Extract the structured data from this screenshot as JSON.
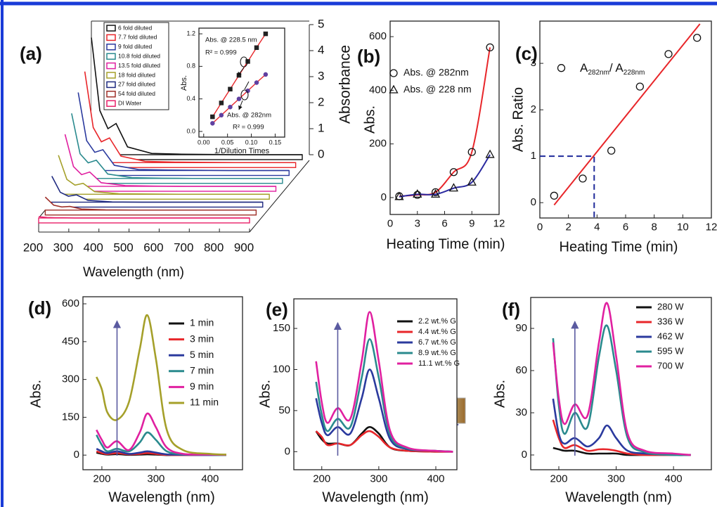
{
  "chart_data": [
    {
      "type": "waterfall",
      "panel_label": "(a)",
      "xlabel": "Wavelength (nm)",
      "ylabel": "Absorbance",
      "x": [
        200,
        228,
        255,
        282,
        320,
        400,
        500,
        600,
        700,
        800,
        900
      ],
      "xlim": [
        200,
        900
      ],
      "xticks": [
        200,
        300,
        400,
        500,
        600,
        700,
        800,
        900
      ],
      "ylim": [
        0,
        5
      ],
      "yticks": [
        0,
        1,
        2,
        3,
        4,
        5
      ],
      "series": [
        {
          "name": "6 fold diluted",
          "color": "#111111",
          "values": [
            4.5,
            1.7,
            1.0,
            1.2,
            0.3,
            0.05,
            0.02,
            0.01,
            0,
            0,
            0
          ]
        },
        {
          "name": "7.7 fold diluted",
          "color": "#e8262a",
          "values": [
            3.5,
            1.35,
            0.8,
            0.95,
            0.25,
            0.05,
            0.02,
            0.01,
            0,
            0,
            0
          ]
        },
        {
          "name": "9 fold diluted",
          "color": "#2b3a9e",
          "values": [
            3.0,
            1.15,
            0.7,
            0.8,
            0.2,
            0.04,
            0.02,
            0.01,
            0,
            0,
            0
          ]
        },
        {
          "name": "10.8 fold diluted",
          "color": "#2a8a8e",
          "values": [
            2.5,
            0.95,
            0.6,
            0.7,
            0.17,
            0.03,
            0.01,
            0,
            0,
            0,
            0
          ]
        },
        {
          "name": "13.5 fold diluted",
          "color": "#e020a0",
          "values": [
            2.0,
            0.76,
            0.45,
            0.55,
            0.14,
            0.03,
            0.01,
            0,
            0,
            0,
            0
          ]
        },
        {
          "name": "18 fold diluted",
          "color": "#a5a02a",
          "values": [
            1.5,
            0.57,
            0.35,
            0.42,
            0.1,
            0.02,
            0.01,
            0,
            0,
            0,
            0
          ]
        },
        {
          "name": "27 fold diluted",
          "color": "#1f2a80",
          "values": [
            1.0,
            0.38,
            0.23,
            0.28,
            0.07,
            0.01,
            0,
            0,
            0,
            0,
            0
          ]
        },
        {
          "name": "54 fold diluted",
          "color": "#a0302a",
          "values": [
            0.5,
            0.19,
            0.12,
            0.14,
            0.04,
            0.01,
            0,
            0,
            0,
            0,
            0
          ]
        },
        {
          "name": "DI Water",
          "color": "#e8206a",
          "values": [
            0.05,
            0.02,
            0.01,
            0.01,
            0,
            0,
            0,
            0,
            0,
            0,
            0
          ]
        }
      ]
    },
    {
      "type": "scatter",
      "xlabel": "1/Dilution Times",
      "ylabel": "Abs.",
      "xlim": [
        -0.01,
        0.17
      ],
      "xticks": [
        {
          "value": 0,
          "label": "0.00"
        },
        0.05,
        {
          "value": 0.1,
          "label": "0.10"
        },
        0.15
      ],
      "ylim": [
        -0.07,
        1.27
      ],
      "yticks": [
        {
          "value": 0,
          "label": "0.0"
        },
        0.4,
        0.8,
        1.2
      ],
      "annotations": [
        "Abs. @ 228.5 nm",
        "R² = 0.999",
        "Abs. @ 282nm",
        "R² = 0.999"
      ],
      "series": [
        {
          "marker": "square",
          "marker_filled": true,
          "marker_color": "#222222",
          "color": "#e8262a",
          "x": [
            0.0185,
            0.037,
            0.0556,
            0.074,
            0.0926,
            0.111,
            0.13
          ],
          "values": [
            0.18,
            0.35,
            0.52,
            0.69,
            0.86,
            1.03,
            1.2
          ]
        },
        {
          "marker": "circle",
          "marker_filled": true,
          "marker_color": "#6040a0",
          "color": "#e8262a",
          "x": [
            0.0185,
            0.037,
            0.0556,
            0.074,
            0.0926,
            0.111,
            0.13
          ],
          "values": [
            0.1,
            0.2,
            0.3,
            0.4,
            0.5,
            0.6,
            0.7
          ]
        }
      ]
    },
    {
      "type": "scatter",
      "panel_label": "(b)",
      "xlabel": "Heating Time (min)",
      "ylabel": "Abs.",
      "xlim": [
        0,
        12
      ],
      "xticks": [
        0,
        3,
        6,
        9,
        12
      ],
      "ylim": [
        -63,
        658
      ],
      "yticks": [
        0,
        200,
        400,
        600
      ],
      "series": [
        {
          "name": "Abs. @ 282nm",
          "marker": "circle",
          "marker_color": "#111111",
          "color": "#e8262a",
          "x": [
            1,
            3,
            5,
            7,
            9,
            11
          ],
          "values": [
            5,
            10,
            20,
            95,
            170,
            560
          ]
        },
        {
          "name": "Abs. @ 228 nm",
          "marker": "triangle",
          "marker_color": "#111111",
          "color": "#2b2aa0",
          "x": [
            1,
            3,
            5,
            7,
            9,
            11
          ],
          "values": [
            3,
            12,
            12,
            35,
            57,
            160
          ]
        }
      ]
    },
    {
      "type": "scatter",
      "panel_label": "(c)",
      "xlabel": "Heating Time (min)",
      "ylabel": "Abs. Ratio",
      "annotation": [
        "A",
        "282nm",
        "/ A",
        "228nm"
      ],
      "xlim": [
        0,
        12
      ],
      "xticks": [
        0,
        2,
        4,
        6,
        8,
        10,
        12
      ],
      "ylim": [
        -0.33,
        3.91
      ],
      "yticks": [
        0,
        1,
        2,
        3
      ],
      "series": [
        {
          "marker": "circle",
          "marker_color": "#111111",
          "x": [
            1,
            1.5,
            3,
            5,
            7,
            9,
            11
          ],
          "values": [
            0.15,
            2.9,
            0.52,
            1.12,
            2.5,
            3.2,
            3.55
          ]
        }
      ],
      "fit": {
        "color": "#e8262a",
        "x": [
          1,
          11.2
        ],
        "values": [
          -0.05,
          3.85
        ]
      },
      "reference": {
        "color": "#1f2a9a",
        "x": 3.8,
        "y": 1
      }
    },
    {
      "type": "line",
      "panel_label": "(d)",
      "xlabel": "Wavelength (nm)",
      "ylabel": "Abs.",
      "x": [
        190,
        200,
        210,
        228,
        250,
        270,
        284,
        300,
        320,
        350,
        400,
        430
      ],
      "xlim": [
        165,
        460
      ],
      "xticks": [
        200,
        300,
        400
      ],
      "ylim": [
        -58,
        628
      ],
      "yticks": [
        0,
        150,
        300,
        450,
        600
      ],
      "series": [
        {
          "name": "1 min",
          "color": "#111111",
          "values": [
            10,
            5,
            2,
            4,
            1,
            2,
            3,
            2,
            0,
            0,
            0,
            0
          ]
        },
        {
          "name": "3 min",
          "color": "#e8262a",
          "values": [
            15,
            8,
            4,
            8,
            3,
            5,
            8,
            5,
            1,
            0,
            0,
            0
          ]
        },
        {
          "name": "5 min",
          "color": "#2b3a9e",
          "values": [
            25,
            15,
            8,
            15,
            5,
            10,
            15,
            10,
            3,
            1,
            0,
            0
          ]
        },
        {
          "name": "7 min",
          "color": "#2a8a8e",
          "values": [
            80,
            40,
            15,
            25,
            15,
            50,
            90,
            60,
            15,
            3,
            1,
            0
          ]
        },
        {
          "name": "9 min",
          "color": "#e020a0",
          "values": [
            100,
            60,
            30,
            55,
            20,
            90,
            165,
            110,
            30,
            5,
            2,
            1
          ]
        },
        {
          "name": "11 min",
          "color": "#a5a02a",
          "values": [
            310,
            260,
            170,
            140,
            210,
            420,
            555,
            380,
            100,
            20,
            5,
            2
          ]
        }
      ]
    },
    {
      "type": "line",
      "panel_label": "(e)",
      "xlabel": "Wavelength (nm)",
      "ylabel": "Abs.",
      "x": [
        190,
        200,
        210,
        228,
        250,
        270,
        284,
        300,
        320,
        350,
        400,
        430
      ],
      "xlim": [
        151,
        437
      ],
      "xticks": [
        200,
        300,
        400
      ],
      "ylim": [
        -22,
        186
      ],
      "yticks": [
        0,
        50,
        100,
        150
      ],
      "series": [
        {
          "name": "2.2 wt.% G",
          "color": "#111111",
          "values": [
            25,
            15,
            10,
            10,
            8,
            22,
            30,
            22,
            5,
            1,
            0,
            0
          ]
        },
        {
          "name": "4.4 wt.% G",
          "color": "#e8262a",
          "values": [
            25,
            18,
            8,
            10,
            8,
            20,
            25,
            18,
            5,
            1,
            0,
            0
          ]
        },
        {
          "name": "6.7 wt.% G",
          "color": "#2b3a9e",
          "values": [
            65,
            35,
            20,
            30,
            22,
            65,
            100,
            65,
            15,
            3,
            1,
            0
          ]
        },
        {
          "name": "8.9 wt.% G",
          "color": "#2a8a8e",
          "values": [
            85,
            45,
            25,
            40,
            30,
            90,
            137,
            90,
            20,
            4,
            1,
            0
          ]
        },
        {
          "name": "11.1 wt.% G",
          "color": "#e020a0",
          "values": [
            110,
            60,
            35,
            53,
            40,
            110,
            170,
            110,
            25,
            5,
            1,
            0
          ]
        }
      ]
    },
    {
      "type": "line",
      "panel_label": "(f)",
      "xlabel": "Wavelength (nm)",
      "ylabel": "Abs.",
      "x": [
        190,
        200,
        210,
        228,
        250,
        270,
        284,
        300,
        320,
        350,
        400,
        430
      ],
      "xlim": [
        151,
        466
      ],
      "xticks": [
        200,
        300,
        400
      ],
      "ylim": [
        -10.5,
        112
      ],
      "yticks": [
        0,
        30,
        60,
        90
      ],
      "series": [
        {
          "name": "280 W",
          "color": "#111111",
          "values": [
            5,
            4,
            3,
            3,
            1,
            1,
            1,
            1,
            0,
            0,
            0,
            0
          ]
        },
        {
          "name": "336 W",
          "color": "#e8262a",
          "values": [
            25,
            12,
            5,
            7,
            3,
            4,
            4,
            3,
            1,
            0,
            0,
            0
          ]
        },
        {
          "name": "462 W",
          "color": "#2b3a9e",
          "values": [
            40,
            15,
            8,
            12,
            6,
            12,
            21,
            12,
            3,
            1,
            0,
            0
          ]
        },
        {
          "name": "595 W",
          "color": "#2a8a8e",
          "values": [
            83,
            35,
            15,
            30,
            20,
            70,
            92,
            60,
            12,
            2,
            0,
            0
          ]
        },
        {
          "name": "700 W",
          "color": "#e020a0",
          "values": [
            80,
            40,
            22,
            36,
            28,
            80,
            108,
            70,
            15,
            3,
            1,
            0
          ]
        }
      ]
    }
  ]
}
